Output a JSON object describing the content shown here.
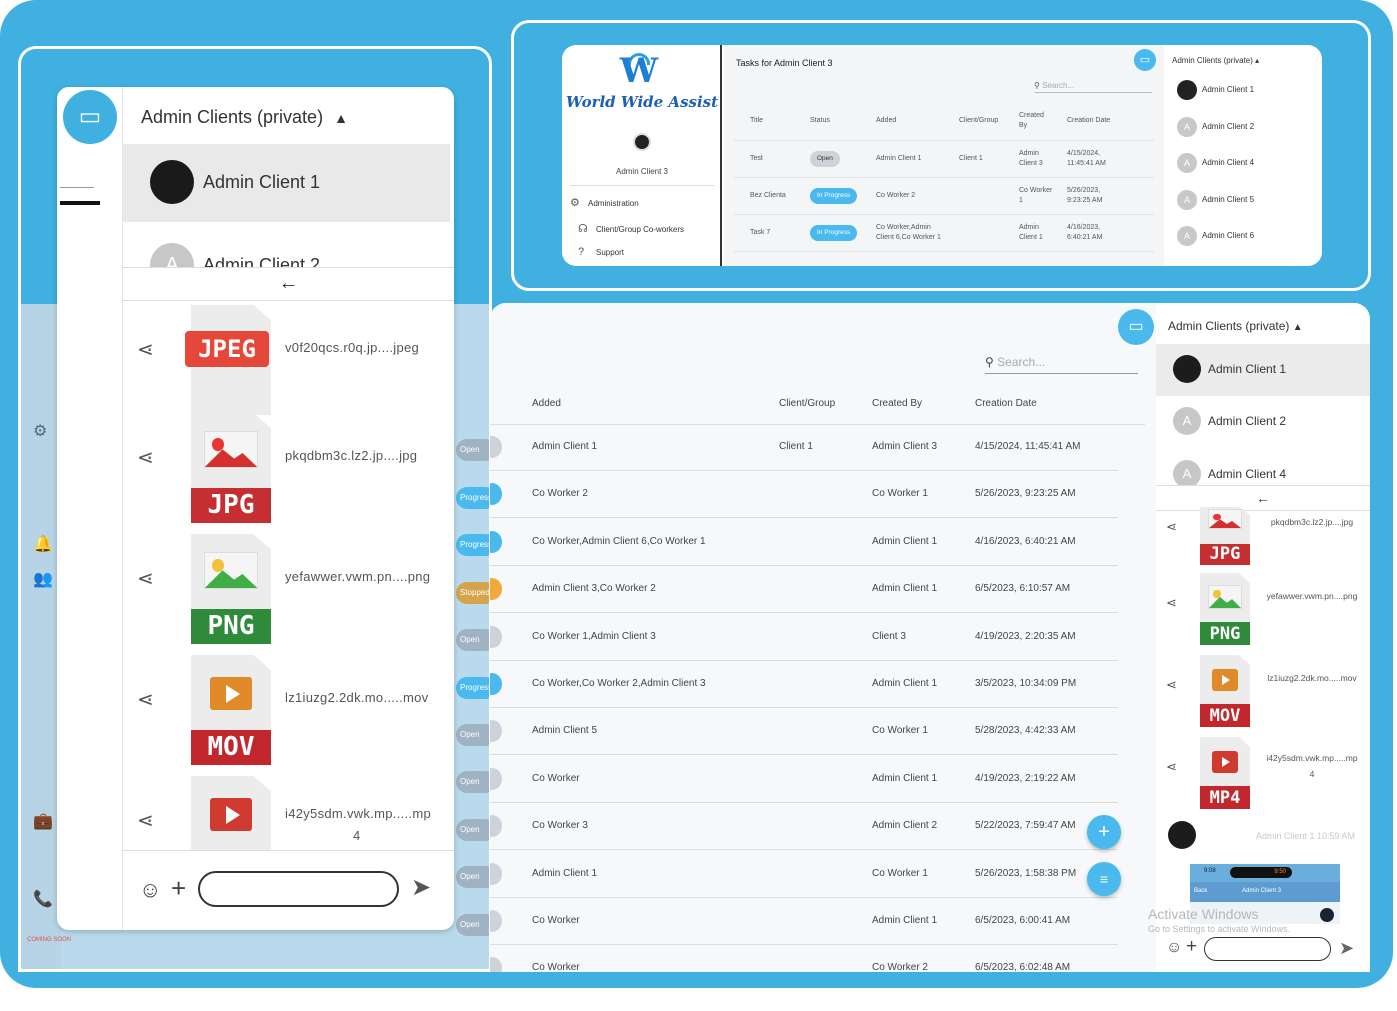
{
  "colors": {
    "frame": "#3fb0e0",
    "accent": "#49b9ee",
    "jpeg": "#e5483b",
    "jpg": "#c62f32",
    "png": "#2f8a3a",
    "mov": "#c1272d",
    "mp4": "#c1272d"
  },
  "top_panel": {
    "brand": "World Wide Assist",
    "user": "Admin Client 3",
    "nav": [
      {
        "label": "Administration",
        "icon": "gear-icon"
      },
      {
        "label": "Client/Group Co-workers",
        "icon": "headset-icon"
      },
      {
        "label": "Support",
        "icon": "help-icon"
      }
    ],
    "title": "Tasks for Admin Client 3",
    "search_placeholder": "Search...",
    "columns": [
      "Title",
      "Status",
      "Added",
      "Client/Group",
      "Created By",
      "Creation Date"
    ],
    "rows": [
      {
        "title": "Test",
        "status": "Open",
        "added": "Admin Client 1",
        "client": "Client 1",
        "created_by": "Admin Client 3",
        "date": "4/15/2024, 11:45:41 AM"
      },
      {
        "title": "Bez Clienta",
        "status": "In Progress",
        "added": "Co Worker 2",
        "client": "",
        "created_by": "Co Worker 1",
        "date": "5/26/2023, 9:23:25 AM"
      },
      {
        "title": "Task 7",
        "status": "In Progress",
        "added": "Co Worker,Admin Client 6,Co Worker 1",
        "client": "",
        "created_by": "Admin Client 1",
        "date": "4/16/2023, 6:40:21 AM"
      }
    ],
    "clients_header": "Admin Clients (private)",
    "clients": [
      "Admin Client 1",
      "Admin Client 2",
      "Admin Client 4",
      "Admin Client 5",
      "Admin Client 6"
    ]
  },
  "bottom_panel": {
    "search_placeholder": "Search...",
    "columns": [
      "Added",
      "Client/Group",
      "Created By",
      "Creation Date"
    ],
    "rows": [
      {
        "added": "Admin Client 1",
        "client": "Client 1",
        "created_by": "Admin Client 3",
        "date": "4/15/2024, 11:45:41 AM",
        "status_color": "#cdd3d8"
      },
      {
        "added": "Co Worker 2",
        "client": "",
        "created_by": "Co Worker 1",
        "date": "5/26/2023, 9:23:25 AM",
        "status_color": "#49b9ee"
      },
      {
        "added": "Co Worker,Admin Client 6,Co Worker 1",
        "client": "",
        "created_by": "Admin Client 1",
        "date": "4/16/2023, 6:40:21 AM",
        "status_color": "#49b9ee"
      },
      {
        "added": "Admin Client 3,Co Worker 2",
        "client": "",
        "created_by": "Admin Client 1",
        "date": "6/5/2023, 6:10:57 AM",
        "status_color": "#f2a93b"
      },
      {
        "added": "Co Worker 1,Admin Client 3",
        "client": "",
        "created_by": "Client 3",
        "date": "4/19/2023, 2:20:35 AM",
        "status_color": "#cdd3d8"
      },
      {
        "added": "Co Worker,Co Worker 2,Admin Client 3",
        "client": "",
        "created_by": "Admin Client 1",
        "date": "3/5/2023, 10:34:09 PM",
        "status_color": "#49b9ee"
      },
      {
        "added": "Admin Client 5",
        "client": "",
        "created_by": "Co Worker 1",
        "date": "5/28/2023, 4:42:33 AM",
        "status_color": "#cdd3d8"
      },
      {
        "added": "Co Worker",
        "client": "",
        "created_by": "Admin Client 1",
        "date": "4/19/2023, 2:19:22 AM",
        "status_color": "#cdd3d8"
      },
      {
        "added": "Co Worker 3",
        "client": "",
        "created_by": "Admin Client 2",
        "date": "5/22/2023, 7:59:47 AM",
        "status_color": "#cdd3d8"
      },
      {
        "added": "Admin Client 1",
        "client": "",
        "created_by": "Co Worker 1",
        "date": "5/26/2023, 1:58:38 PM",
        "status_color": "#cdd3d8"
      },
      {
        "added": "Co Worker",
        "client": "",
        "created_by": "Admin Client 1",
        "date": "6/5/2023, 6:00:41 AM",
        "status_color": "#cdd3d8"
      },
      {
        "added": "Co Worker",
        "client": "",
        "created_by": "Co Worker 2",
        "date": "6/5/2023, 6:02:48 AM",
        "status_color": "#cdd3d8"
      }
    ],
    "clients_header": "Admin Clients (private)",
    "clients": [
      "Admin Client 1",
      "Admin Client 2",
      "Admin Client 4"
    ],
    "files": [
      {
        "name": "pkqdbm3c.lz2.jp....jpg",
        "ext": "JPG"
      },
      {
        "name": "yefawwer.vwm.pn....png",
        "ext": "PNG"
      },
      {
        "name": "lz1iuzg2.2dk.mo.....mov",
        "ext": "MOV"
      },
      {
        "name": "i42y5sdm.vwk.mp.....mp",
        "name2": "4",
        "ext": "MP4"
      }
    ],
    "message_meta": "Admin Client 1 10:59 AM",
    "thumb_time_left": "9:08",
    "thumb_time_right": "9:50",
    "thumb_back": "Back",
    "thumb_title": "Admin Client 3",
    "watermark": "Activate Windows",
    "watermark_sub": "Go to Settings to activate Windows."
  },
  "left_panel": {
    "clients_header": "Admin Clients (private)",
    "clients": [
      "Admin Client 1",
      "Admin Client 2"
    ],
    "files": [
      {
        "name": "v0f20qcs.r0q.jp....jpeg",
        "ext": "JPEG"
      },
      {
        "name": "pkqdbm3c.lz2.jp....jpg",
        "ext": "JPG"
      },
      {
        "name": "yefawwer.vwm.pn....png",
        "ext": "PNG"
      },
      {
        "name": "lz1iuzg2.2dk.mo.....mov",
        "ext": "MOV"
      },
      {
        "name": "i42y5sdm.vwk.mp.....mp",
        "name2": "4",
        "ext": ""
      }
    ],
    "bg_status": [
      "Open",
      "Progress",
      "Progress",
      "Stopped",
      "Open",
      "Progress",
      "Open",
      "Open",
      "Open",
      "Open",
      "Open"
    ],
    "bg_footer": "COMING SOON"
  }
}
